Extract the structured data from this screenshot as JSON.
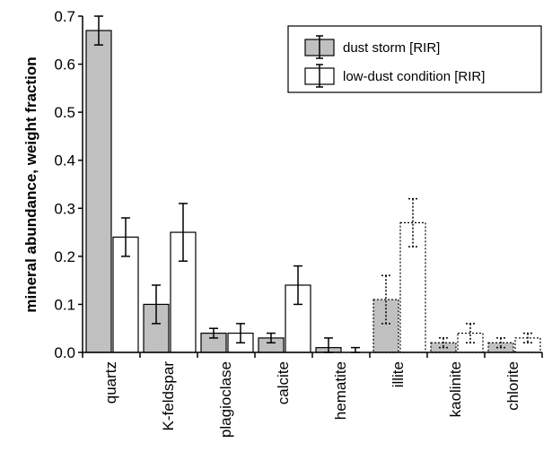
{
  "chart_data": {
    "type": "bar",
    "title": "",
    "xlabel": "",
    "ylabel": "mineral abundance, weight fraction",
    "ylim": [
      0,
      0.7
    ],
    "yticks": [
      "0.0",
      "0.1",
      "0.2",
      "0.3",
      "0.4",
      "0.5",
      "0.6",
      "0.7"
    ],
    "categories": [
      "quartz",
      "K-feldspar",
      "plagioclase",
      "calcite",
      "hematite",
      "illite",
      "kaolinite",
      "chlorite"
    ],
    "series": [
      {
        "name": "dust storm [RIR]",
        "color": "#c0c0c0",
        "values": [
          0.67,
          0.1,
          0.04,
          0.03,
          0.01,
          0.11,
          0.02,
          0.02
        ],
        "errors": [
          0.03,
          0.04,
          0.01,
          0.01,
          0.02,
          0.05,
          0.01,
          0.01
        ]
      },
      {
        "name": "low-dust condition [RIR]",
        "color": "#ffffff",
        "values": [
          0.24,
          0.25,
          0.04,
          0.14,
          0.0,
          0.27,
          0.04,
          0.03
        ],
        "errors": [
          0.04,
          0.06,
          0.02,
          0.04,
          0.01,
          0.05,
          0.02,
          0.01
        ]
      }
    ],
    "dotted_categories": [
      "illite",
      "kaolinite",
      "chlorite"
    ],
    "legend_position": "top-right",
    "grid": false
  }
}
